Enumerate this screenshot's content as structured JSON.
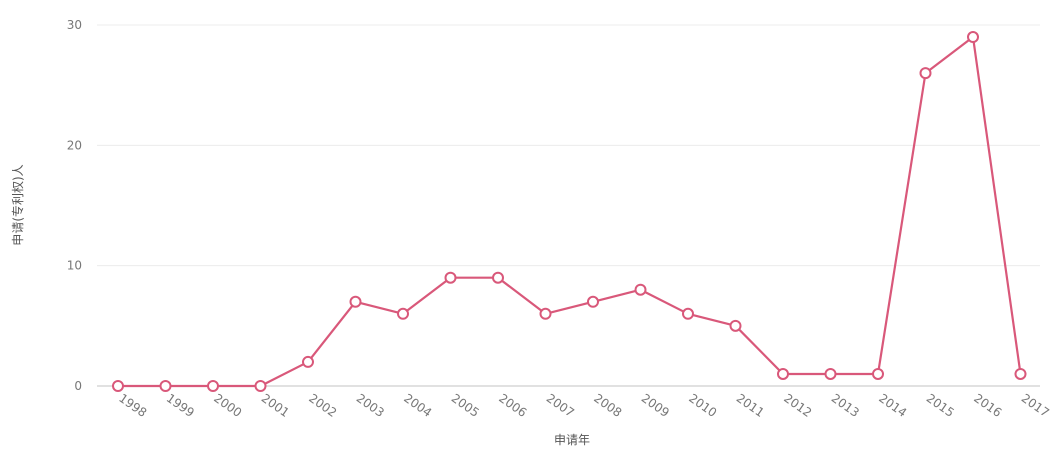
{
  "chart_data": {
    "type": "line",
    "title": "",
    "xlabel": "申请年",
    "ylabel": "申请(专利权)人",
    "categories": [
      "1998",
      "1999",
      "2000",
      "2001",
      "2002",
      "2003",
      "2004",
      "2005",
      "2006",
      "2007",
      "2008",
      "2009",
      "2010",
      "2011",
      "2012",
      "2013",
      "2014",
      "2015",
      "2016",
      "2017"
    ],
    "series": [
      {
        "values": [
          0,
          0,
          0,
          0,
          2,
          7,
          6,
          9,
          9,
          6,
          7,
          8,
          6,
          5,
          1,
          1,
          1,
          26,
          29,
          1
        ]
      }
    ],
    "ylim": [
      0,
      30
    ],
    "yticks": [
      0,
      10,
      20,
      30
    ],
    "grid": true,
    "legend": "none",
    "colors": {
      "line": "#d9587a",
      "marker_fill": "#ffffff",
      "grid": "#ececec",
      "baseline": "#cfcfcf"
    }
  }
}
